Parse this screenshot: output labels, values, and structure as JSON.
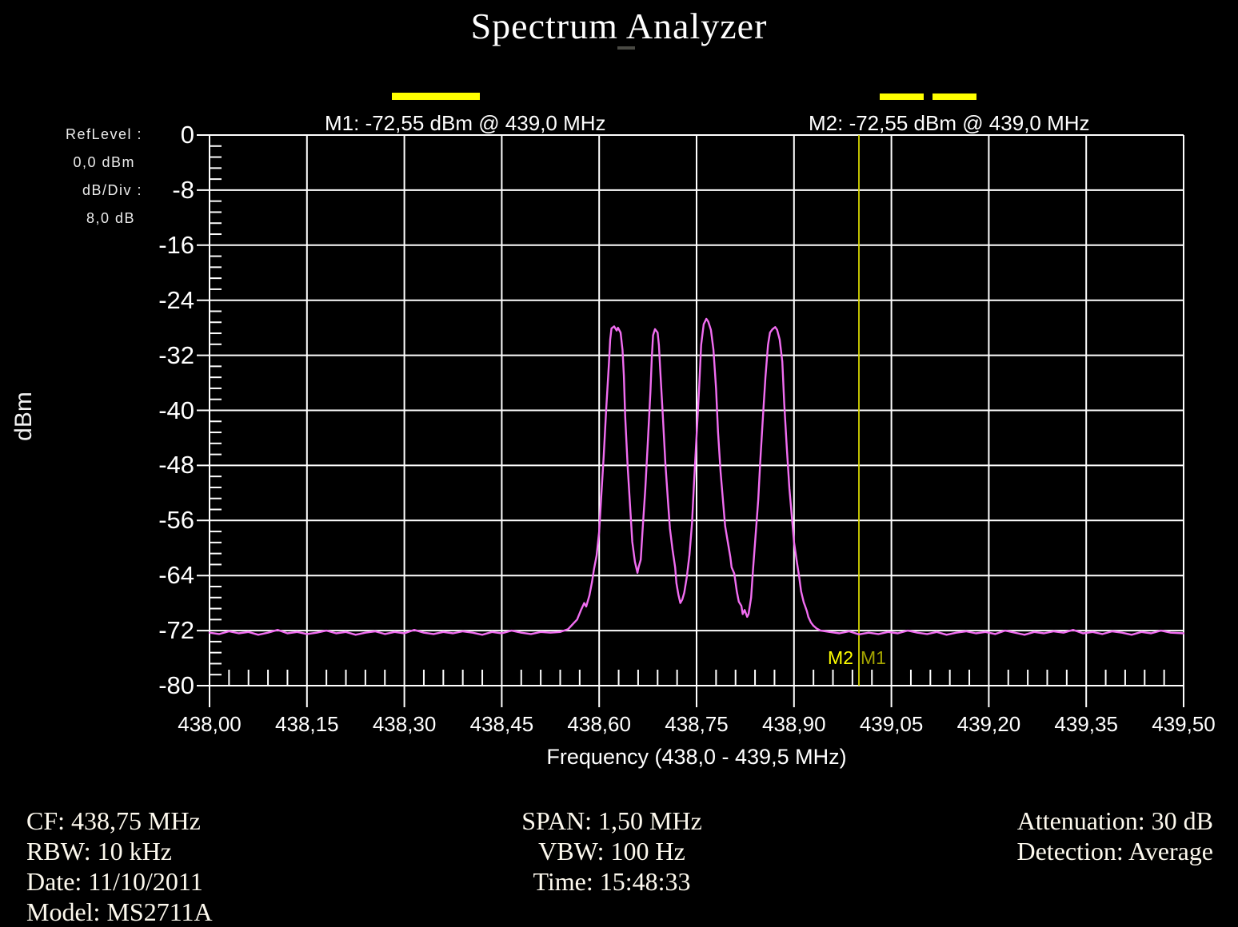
{
  "title": "Spectrum Analyzer",
  "markers": {
    "m1_readout": "M1: -72,55 dBm @ 439,0 MHz",
    "m2_readout": "M2: -72,55 dBm @ 439,0 MHz",
    "m2_label": "M2",
    "m1_label": "M1"
  },
  "ref_panel": {
    "ref_level_label": "RefLevel :",
    "ref_level_value": "0,0  dBm",
    "db_div_label": "dB/Div :",
    "db_div_value": "8,0 dB"
  },
  "axes": {
    "y_unit": "dBm",
    "x_label": "Frequency (438,0 - 439,5 MHz)",
    "x_ticks": [
      "438,00",
      "438,15",
      "438,30",
      "438,45",
      "438,60",
      "438,75",
      "438,90",
      "439,05",
      "439,20",
      "439,35",
      "439,50"
    ],
    "y_ticks": [
      "0",
      "-8",
      "-16",
      "-24",
      "-32",
      "-40",
      "-48",
      "-56",
      "-64",
      "-72",
      "-80"
    ]
  },
  "footer": {
    "left": [
      "CF: 438,75 MHz",
      "RBW: 10 kHz",
      "Date: 11/10/2011",
      "Model: MS2711A"
    ],
    "center": [
      "SPAN: 1,50 MHz",
      "VBW: 100 Hz",
      "Time: 15:48:33"
    ],
    "right": [
      "Attenuation: 30 dB",
      "Detection: Average"
    ]
  },
  "colors": {
    "background": "#000000",
    "grid": "#ffffff",
    "trace": "#f16df1",
    "marker_line": "#d6d600",
    "marker_bright": "#ffff00",
    "marker_dim": "#a3a300"
  },
  "chart_data": {
    "type": "line",
    "title": "Spectrum Analyzer",
    "xlabel": "Frequency (438,0 - 439,5 MHz)",
    "ylabel": "dBm",
    "xlim": [
      438.0,
      439.5
    ],
    "ylim": [
      -80,
      0
    ],
    "x_major_step_mhz": 0.15,
    "y_major_step_db": 8,
    "minor_intervals_per_division": 5,
    "grid": true,
    "ref_level_dbm": 0.0,
    "db_per_div": 8.0,
    "markers": [
      {
        "name": "M1",
        "freq_mhz": 439.0,
        "dbm": -72.55
      },
      {
        "name": "M2",
        "freq_mhz": 439.0,
        "dbm": -72.55
      }
    ],
    "series": [
      {
        "name": "average-detection trace",
        "color": "#f16df1",
        "points": [
          [
            438.0,
            -72.3
          ],
          [
            438.015,
            -72.5
          ],
          [
            438.03,
            -72.1
          ],
          [
            438.045,
            -72.4
          ],
          [
            438.06,
            -72.2
          ],
          [
            438.075,
            -72.6
          ],
          [
            438.09,
            -72.3
          ],
          [
            438.105,
            -71.9
          ],
          [
            438.12,
            -72.4
          ],
          [
            438.135,
            -72.2
          ],
          [
            438.15,
            -72.5
          ],
          [
            438.165,
            -72.3
          ],
          [
            438.18,
            -72.0
          ],
          [
            438.195,
            -72.4
          ],
          [
            438.21,
            -72.2
          ],
          [
            438.225,
            -72.6
          ],
          [
            438.24,
            -72.3
          ],
          [
            438.255,
            -72.1
          ],
          [
            438.27,
            -72.5
          ],
          [
            438.285,
            -72.2
          ],
          [
            438.3,
            -72.4
          ],
          [
            438.315,
            -71.9
          ],
          [
            438.33,
            -72.3
          ],
          [
            438.345,
            -72.5
          ],
          [
            438.36,
            -72.2
          ],
          [
            438.375,
            -72.4
          ],
          [
            438.39,
            -72.1
          ],
          [
            438.405,
            -72.3
          ],
          [
            438.42,
            -72.6
          ],
          [
            438.435,
            -72.2
          ],
          [
            438.45,
            -72.4
          ],
          [
            438.465,
            -72.0
          ],
          [
            438.48,
            -72.3
          ],
          [
            438.495,
            -72.5
          ],
          [
            438.51,
            -72.2
          ],
          [
            438.525,
            -72.3
          ],
          [
            438.54,
            -72.2
          ],
          [
            438.552,
            -71.8
          ],
          [
            438.56,
            -71.0
          ],
          [
            438.566,
            -70.4
          ],
          [
            438.572,
            -69.0
          ],
          [
            438.577,
            -68.0
          ],
          [
            438.58,
            -68.5
          ],
          [
            438.585,
            -66.9
          ],
          [
            438.589,
            -64.9
          ],
          [
            438.592,
            -63.1
          ],
          [
            438.596,
            -61.1
          ],
          [
            438.6,
            -57.6
          ],
          [
            438.603,
            -52.9
          ],
          [
            438.607,
            -46.6
          ],
          [
            438.611,
            -39.6
          ],
          [
            438.615,
            -33.2
          ],
          [
            438.617,
            -29.7
          ],
          [
            438.619,
            -28.1
          ],
          [
            438.623,
            -27.8
          ],
          [
            438.627,
            -28.4
          ],
          [
            438.629,
            -28.0
          ],
          [
            438.633,
            -28.7
          ],
          [
            438.636,
            -31.2
          ],
          [
            438.638,
            -35.0
          ],
          [
            438.64,
            -40.8
          ],
          [
            438.644,
            -48.3
          ],
          [
            438.648,
            -54.5
          ],
          [
            438.651,
            -59.1
          ],
          [
            438.655,
            -62.0
          ],
          [
            438.659,
            -63.6
          ],
          [
            438.661,
            -62.7
          ],
          [
            438.664,
            -61.7
          ],
          [
            438.667,
            -57.2
          ],
          [
            438.671,
            -51.4
          ],
          [
            438.675,
            -44.5
          ],
          [
            438.679,
            -37.3
          ],
          [
            438.681,
            -32.4
          ],
          [
            438.683,
            -29.1
          ],
          [
            438.686,
            -28.2
          ],
          [
            438.69,
            -28.7
          ],
          [
            438.692,
            -30.5
          ],
          [
            438.694,
            -34.0
          ],
          [
            438.698,
            -40.8
          ],
          [
            438.702,
            -47.7
          ],
          [
            438.706,
            -53.3
          ],
          [
            438.709,
            -57.2
          ],
          [
            438.713,
            -60.3
          ],
          [
            438.717,
            -62.8
          ],
          [
            438.719,
            -65.1
          ],
          [
            438.722,
            -66.8
          ],
          [
            438.725,
            -68.0
          ],
          [
            438.728,
            -67.5
          ],
          [
            438.731,
            -66.5
          ],
          [
            438.735,
            -64.2
          ],
          [
            438.739,
            -61.0
          ],
          [
            438.743,
            -56.4
          ],
          [
            438.746,
            -50.6
          ],
          [
            438.75,
            -43.7
          ],
          [
            438.754,
            -36.7
          ],
          [
            438.757,
            -30.5
          ],
          [
            438.761,
            -27.5
          ],
          [
            438.765,
            -26.7
          ],
          [
            438.768,
            -27.1
          ],
          [
            438.772,
            -28.3
          ],
          [
            438.776,
            -31.2
          ],
          [
            438.78,
            -36.9
          ],
          [
            438.783,
            -43.1
          ],
          [
            438.787,
            -48.9
          ],
          [
            438.791,
            -53.5
          ],
          [
            438.794,
            -56.8
          ],
          [
            438.798,
            -59.1
          ],
          [
            438.802,
            -61.3
          ],
          [
            438.804,
            -62.8
          ],
          [
            438.808,
            -63.7
          ],
          [
            438.812,
            -66.3
          ],
          [
            438.815,
            -67.8
          ],
          [
            438.819,
            -68.4
          ],
          [
            438.821,
            -69.6
          ],
          [
            438.824,
            -69.0
          ],
          [
            438.828,
            -70.0
          ],
          [
            438.83,
            -69.6
          ],
          [
            438.834,
            -67.2
          ],
          [
            438.837,
            -63.1
          ],
          [
            438.841,
            -58.0
          ],
          [
            438.845,
            -53.0
          ],
          [
            438.848,
            -47.5
          ],
          [
            438.852,
            -41.3
          ],
          [
            438.856,
            -35.2
          ],
          [
            438.86,
            -30.5
          ],
          [
            438.863,
            -28.7
          ],
          [
            438.867,
            -28.2
          ],
          [
            438.871,
            -27.9
          ],
          [
            438.874,
            -28.3
          ],
          [
            438.878,
            -29.7
          ],
          [
            438.882,
            -32.9
          ],
          [
            438.885,
            -39.0
          ],
          [
            438.889,
            -45.6
          ],
          [
            438.893,
            -51.4
          ],
          [
            438.897,
            -55.8
          ],
          [
            438.9,
            -59.1
          ],
          [
            438.904,
            -61.7
          ],
          [
            438.908,
            -64.2
          ],
          [
            438.911,
            -66.3
          ],
          [
            438.915,
            -67.9
          ],
          [
            438.917,
            -68.4
          ],
          [
            438.92,
            -69.2
          ],
          [
            438.922,
            -70.0
          ],
          [
            438.926,
            -70.8
          ],
          [
            438.93,
            -71.3
          ],
          [
            438.935,
            -71.7
          ],
          [
            438.941,
            -72.0
          ],
          [
            438.955,
            -72.2
          ],
          [
            438.97,
            -72.4
          ],
          [
            438.985,
            -72.1
          ],
          [
            439.0,
            -72.55
          ],
          [
            439.015,
            -72.3
          ],
          [
            439.03,
            -72.5
          ],
          [
            439.045,
            -72.2
          ],
          [
            439.06,
            -72.4
          ],
          [
            439.075,
            -72.0
          ],
          [
            439.09,
            -72.3
          ],
          [
            439.105,
            -72.5
          ],
          [
            439.12,
            -72.2
          ],
          [
            439.135,
            -72.6
          ],
          [
            439.15,
            -72.3
          ],
          [
            439.165,
            -72.1
          ],
          [
            439.18,
            -72.4
          ],
          [
            439.195,
            -72.2
          ],
          [
            439.21,
            -72.5
          ],
          [
            439.225,
            -72.0
          ],
          [
            439.24,
            -72.3
          ],
          [
            439.255,
            -72.6
          ],
          [
            439.27,
            -72.2
          ],
          [
            439.285,
            -72.4
          ],
          [
            439.3,
            -72.1
          ],
          [
            439.315,
            -72.3
          ],
          [
            439.33,
            -71.9
          ],
          [
            439.345,
            -72.4
          ],
          [
            439.36,
            -72.2
          ],
          [
            439.375,
            -72.5
          ],
          [
            439.39,
            -72.1
          ],
          [
            439.405,
            -72.3
          ],
          [
            439.42,
            -72.6
          ],
          [
            439.435,
            -72.2
          ],
          [
            439.45,
            -72.4
          ],
          [
            439.465,
            -72.0
          ],
          [
            439.48,
            -72.3
          ],
          [
            439.5,
            -72.4
          ]
        ]
      }
    ]
  }
}
